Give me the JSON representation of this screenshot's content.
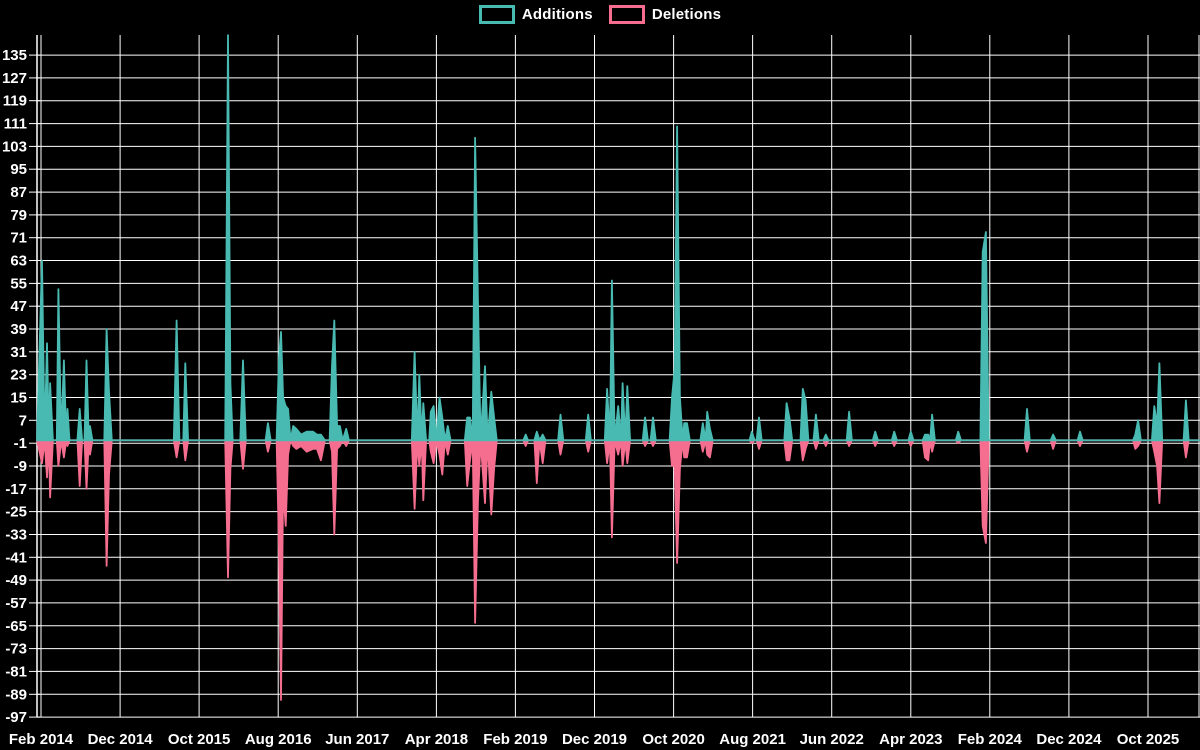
{
  "legend": [
    {
      "label": "Additions",
      "color": "#49bab1"
    },
    {
      "label": "Deletions",
      "color": "#f56e8f"
    }
  ],
  "chart_data": {
    "type": "area",
    "title": "",
    "description": "Weekly code additions (teal, up) and deletions (pink, down) spike chart on black background",
    "grid": true,
    "background_color": "#000000",
    "gridline_color": "#ffffff",
    "text_color": "#ffffff",
    "x_axis": {
      "unit": "months since Feb 2014",
      "tick_labels": [
        "Feb 2014",
        "Dec 2014",
        "Oct 2015",
        "Aug 2016",
        "Jun 2017",
        "Apr 2018",
        "Feb 2019",
        "Dec 2019",
        "Oct 2020",
        "Aug 2021",
        "Jun 2022",
        "Apr 2023",
        "Feb 2024",
        "Dec 2024",
        "Oct 2025"
      ],
      "tick_interval_months": 10
    },
    "y_axis": {
      "ticks": [
        135,
        127,
        119,
        111,
        103,
        95,
        87,
        79,
        71,
        63,
        55,
        47,
        39,
        31,
        23,
        15,
        7,
        -1,
        -9,
        -17,
        -25,
        -33,
        -41,
        -49,
        -57,
        -65,
        -73,
        -81,
        -89,
        -97
      ],
      "min": -97,
      "max": 135,
      "step": 8
    },
    "series_names": [
      "Additions",
      "Deletions"
    ],
    "series_colors": [
      "#49bab1",
      "#f56e8f"
    ],
    "points_format": "[months_since_feb2014, additions, deletions]",
    "points": [
      [
        -0.5,
        0,
        0
      ],
      [
        0.13,
        63,
        -8
      ],
      [
        0.45,
        0,
        0
      ],
      [
        0.76,
        34,
        -13
      ],
      [
        1.0,
        0,
        0
      ],
      [
        1.15,
        20,
        -20
      ],
      [
        1.5,
        0,
        0
      ],
      [
        2.0,
        0,
        0
      ],
      [
        2.2,
        53,
        -9
      ],
      [
        2.55,
        0,
        0
      ],
      [
        2.9,
        28,
        -6
      ],
      [
        3.2,
        0,
        0
      ],
      [
        3.35,
        11,
        -2
      ],
      [
        3.6,
        0,
        0
      ],
      [
        4.6,
        0,
        0
      ],
      [
        4.9,
        11,
        -16
      ],
      [
        5.2,
        0,
        0
      ],
      [
        5.5,
        0,
        0
      ],
      [
        5.75,
        28,
        -17
      ],
      [
        6.05,
        0,
        0
      ],
      [
        6.2,
        5,
        -5
      ],
      [
        6.5,
        0,
        0
      ],
      [
        8.0,
        0,
        0
      ],
      [
        8.3,
        39,
        -44
      ],
      [
        8.6,
        17,
        -12
      ],
      [
        8.95,
        0,
        0
      ],
      [
        16.8,
        0,
        0
      ],
      [
        17.15,
        42,
        -6
      ],
      [
        17.5,
        0,
        0
      ],
      [
        18.0,
        0,
        0
      ],
      [
        18.25,
        27,
        -7
      ],
      [
        18.6,
        0,
        0
      ],
      [
        23.3,
        0,
        0
      ],
      [
        23.65,
        142,
        -48
      ],
      [
        23.95,
        20,
        -10
      ],
      [
        24.25,
        0,
        0
      ],
      [
        25.2,
        0,
        0
      ],
      [
        25.55,
        28,
        -10
      ],
      [
        25.9,
        0,
        0
      ],
      [
        28.4,
        0,
        0
      ],
      [
        28.7,
        6,
        -4
      ],
      [
        29.05,
        0,
        0
      ],
      [
        29.8,
        0,
        0
      ],
      [
        30.1,
        29,
        -38
      ],
      [
        30.35,
        38,
        -91
      ],
      [
        30.62,
        15,
        -17
      ],
      [
        30.95,
        12,
        -30
      ],
      [
        31.25,
        11,
        -5
      ],
      [
        31.55,
        0,
        0
      ],
      [
        31.9,
        5,
        -2
      ],
      [
        32.3,
        4,
        -3
      ],
      [
        32.9,
        2,
        -2
      ],
      [
        33.6,
        3,
        -4
      ],
      [
        34.4,
        3,
        -3
      ],
      [
        34.9,
        2,
        -3
      ],
      [
        35.4,
        2,
        -7
      ],
      [
        35.9,
        0,
        0
      ],
      [
        36.5,
        0,
        0
      ],
      [
        36.8,
        26,
        -4
      ],
      [
        37.1,
        42,
        -33
      ],
      [
        37.45,
        5,
        -3
      ],
      [
        37.8,
        5,
        -2
      ],
      [
        38.15,
        0,
        0
      ],
      [
        38.6,
        4,
        -2
      ],
      [
        38.95,
        0,
        0
      ],
      [
        46.9,
        0,
        0
      ],
      [
        47.25,
        31,
        -24
      ],
      [
        47.6,
        0,
        0
      ],
      [
        47.85,
        23,
        -9
      ],
      [
        48.15,
        0,
        0
      ],
      [
        48.35,
        13,
        -21
      ],
      [
        48.7,
        0,
        0
      ],
      [
        49.1,
        0,
        0
      ],
      [
        49.3,
        10,
        -4
      ],
      [
        49.65,
        12,
        -8
      ],
      [
        50.0,
        0,
        0
      ],
      [
        50.4,
        15,
        -5
      ],
      [
        50.75,
        8,
        -12
      ],
      [
        51.1,
        0,
        0
      ],
      [
        51.45,
        5,
        -5
      ],
      [
        51.8,
        0,
        0
      ],
      [
        53.6,
        0,
        0
      ],
      [
        53.9,
        8,
        -16
      ],
      [
        54.25,
        8,
        -7
      ],
      [
        54.6,
        0,
        0
      ],
      [
        54.9,
        106,
        -64
      ],
      [
        55.25,
        50,
        -22
      ],
      [
        55.6,
        0,
        0
      ],
      [
        56.15,
        26,
        -22
      ],
      [
        56.5,
        0,
        0
      ],
      [
        56.95,
        17,
        -26
      ],
      [
        57.3,
        8,
        -10
      ],
      [
        57.65,
        0,
        0
      ],
      [
        61.0,
        0,
        0
      ],
      [
        61.3,
        2,
        -2
      ],
      [
        61.6,
        0,
        0
      ],
      [
        62.4,
        0,
        0
      ],
      [
        62.7,
        3,
        -15
      ],
      [
        63.05,
        0,
        0
      ],
      [
        63.45,
        2,
        -8
      ],
      [
        63.8,
        0,
        0
      ],
      [
        65.4,
        0,
        0
      ],
      [
        65.7,
        9,
        -5
      ],
      [
        66.05,
        0,
        0
      ],
      [
        68.9,
        0,
        0
      ],
      [
        69.2,
        9,
        -4
      ],
      [
        69.55,
        0,
        0
      ],
      [
        71.3,
        0,
        0
      ],
      [
        71.6,
        18,
        -8
      ],
      [
        71.95,
        0,
        0
      ],
      [
        72.2,
        56,
        -34
      ],
      [
        72.55,
        0,
        0
      ],
      [
        73.0,
        12,
        -5
      ],
      [
        73.35,
        0,
        0
      ],
      [
        73.55,
        20,
        -9
      ],
      [
        73.9,
        0,
        0
      ],
      [
        74.15,
        19,
        -8
      ],
      [
        74.5,
        0,
        0
      ],
      [
        76.1,
        0,
        0
      ],
      [
        76.4,
        8,
        -2
      ],
      [
        76.75,
        0,
        0
      ],
      [
        77.1,
        0,
        0
      ],
      [
        77.4,
        8,
        -2
      ],
      [
        77.75,
        0,
        0
      ],
      [
        79.5,
        0,
        0
      ],
      [
        79.8,
        15,
        -9
      ],
      [
        80.15,
        25,
        -9
      ],
      [
        80.45,
        110,
        -43
      ],
      [
        80.8,
        15,
        -10
      ],
      [
        81.15,
        0,
        0
      ],
      [
        81.35,
        6,
        -6
      ],
      [
        81.7,
        6,
        -6
      ],
      [
        82.05,
        0,
        0
      ],
      [
        83.4,
        0,
        0
      ],
      [
        83.7,
        6,
        -4
      ],
      [
        84.05,
        0,
        0
      ],
      [
        84.25,
        10,
        -5
      ],
      [
        84.6,
        4,
        -6
      ],
      [
        84.95,
        0,
        0
      ],
      [
        89.6,
        0,
        0
      ],
      [
        89.9,
        3,
        -1
      ],
      [
        90.25,
        0,
        0
      ],
      [
        90.5,
        0,
        0
      ],
      [
        90.8,
        8,
        -3
      ],
      [
        91.15,
        0,
        0
      ],
      [
        94.0,
        0,
        0
      ],
      [
        94.3,
        13,
        -7
      ],
      [
        94.65,
        8,
        -7
      ],
      [
        95.0,
        0,
        0
      ],
      [
        96.05,
        0,
        0
      ],
      [
        96.35,
        18,
        -7
      ],
      [
        96.7,
        14,
        -3
      ],
      [
        97.05,
        0,
        0
      ],
      [
        97.7,
        0,
        0
      ],
      [
        98.0,
        9,
        -3
      ],
      [
        98.35,
        0,
        0
      ],
      [
        98.95,
        0,
        0
      ],
      [
        99.25,
        2,
        -2
      ],
      [
        99.6,
        0,
        0
      ],
      [
        101.9,
        0,
        0
      ],
      [
        102.2,
        10,
        -2
      ],
      [
        102.55,
        0,
        0
      ],
      [
        105.2,
        0,
        0
      ],
      [
        105.5,
        3,
        -2
      ],
      [
        105.85,
        0,
        0
      ],
      [
        107.6,
        0,
        0
      ],
      [
        107.9,
        3,
        -2
      ],
      [
        108.25,
        0,
        0
      ],
      [
        109.7,
        0,
        0
      ],
      [
        110.0,
        3,
        -2
      ],
      [
        110.35,
        0,
        0
      ],
      [
        111.5,
        0,
        0
      ],
      [
        111.8,
        2,
        -6
      ],
      [
        112.2,
        2,
        -7
      ],
      [
        112.45,
        0,
        0
      ],
      [
        112.7,
        9,
        -4
      ],
      [
        113.05,
        0,
        0
      ],
      [
        115.7,
        0,
        0
      ],
      [
        116.0,
        3,
        -1
      ],
      [
        116.35,
        0,
        0
      ],
      [
        118.8,
        0,
        0
      ],
      [
        119.1,
        66,
        -30
      ],
      [
        119.5,
        73,
        -36
      ],
      [
        119.85,
        0,
        0
      ],
      [
        124.4,
        0,
        0
      ],
      [
        124.7,
        11,
        -4
      ],
      [
        125.05,
        0,
        0
      ],
      [
        127.7,
        0,
        0
      ],
      [
        128.0,
        2,
        -3
      ],
      [
        128.35,
        0,
        0
      ],
      [
        131.1,
        0,
        0
      ],
      [
        131.4,
        3,
        -2
      ],
      [
        131.75,
        0,
        0
      ],
      [
        138.1,
        0,
        0
      ],
      [
        138.4,
        2,
        -3
      ],
      [
        138.75,
        7,
        -2
      ],
      [
        139.1,
        0,
        0
      ],
      [
        140.5,
        0,
        0
      ],
      [
        140.8,
        12,
        -4
      ],
      [
        141.15,
        5,
        -9
      ],
      [
        141.45,
        27,
        -22
      ],
      [
        141.8,
        0,
        0
      ],
      [
        144.5,
        0,
        0
      ],
      [
        144.8,
        14,
        -6
      ],
      [
        145.15,
        0,
        0
      ],
      [
        146.6,
        0,
        0
      ]
    ]
  }
}
